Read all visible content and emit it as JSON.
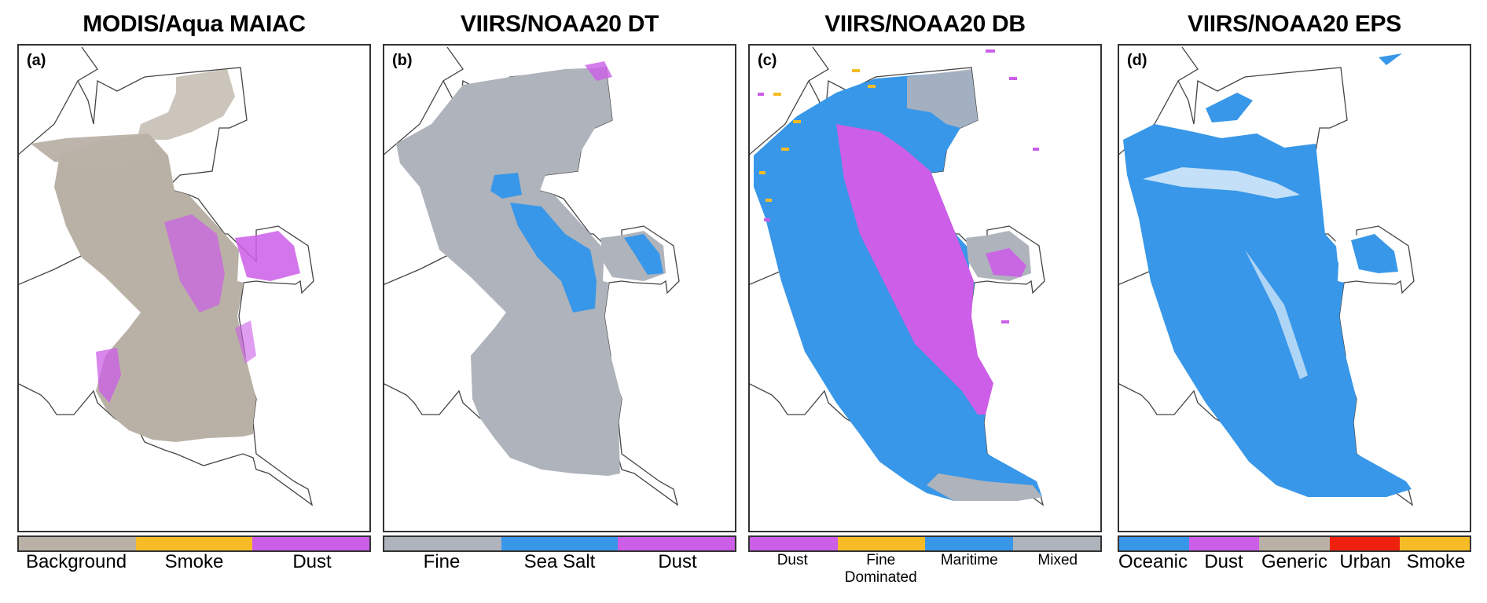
{
  "panels": [
    {
      "title": "MODIS/Aqua MAIAC",
      "label": "(a)",
      "legend": [
        {
          "label": "Background",
          "color": "#b9b1a6"
        },
        {
          "label": "Smoke",
          "color": "#f6bc27"
        },
        {
          "label": "Dust",
          "color": "#cc5ee7"
        }
      ]
    },
    {
      "title": "VIIRS/NOAA20 DT",
      "label": "(b)",
      "legend": [
        {
          "label": "Fine",
          "color": "#afb3bc"
        },
        {
          "label": "Sea Salt",
          "color": "#3897e8"
        },
        {
          "label": "Dust",
          "color": "#cc5ee7"
        }
      ]
    },
    {
      "title": "VIIRS/NOAA20 DB",
      "label": "(c)",
      "legend": [
        {
          "label": "Dust",
          "color": "#cc5ee7"
        },
        {
          "label": "Fine\nDominated",
          "color": "#f6bc27"
        },
        {
          "label": "Maritime",
          "color": "#3897e8"
        },
        {
          "label": "Mixed",
          "color": "#afb3bc"
        }
      ]
    },
    {
      "title": "VIIRS/NOAA20 EPS",
      "label": "(d)",
      "legend": [
        {
          "label": "Oceanic",
          "color": "#3897e8"
        },
        {
          "label": "Dust",
          "color": "#cc5ee7"
        },
        {
          "label": "Generic",
          "color": "#b9b1a6"
        },
        {
          "label": "Urban",
          "color": "#f0200f"
        },
        {
          "label": "Smoke",
          "color": "#f6bc27"
        }
      ]
    }
  ]
}
